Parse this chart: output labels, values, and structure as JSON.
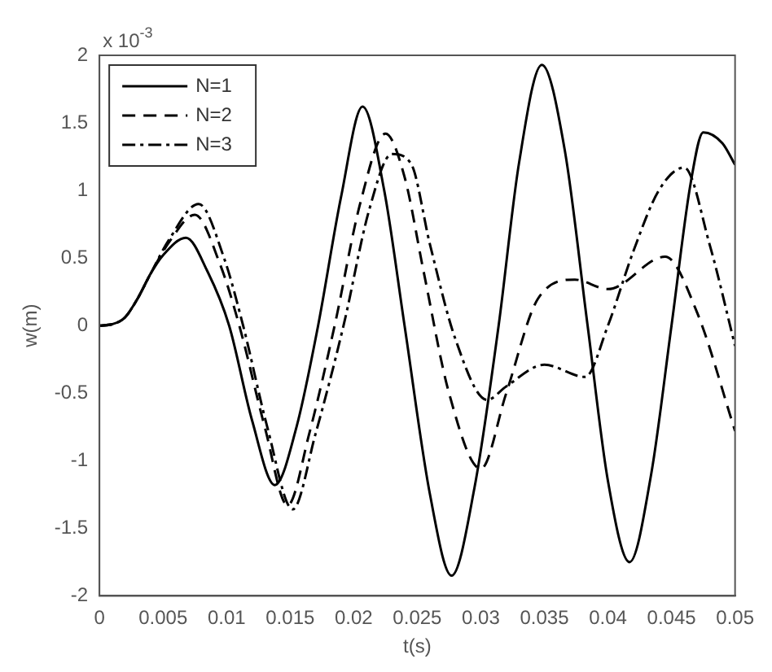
{
  "chart_data": {
    "type": "line",
    "xlabel": "t(s)",
    "ylabel": "w(m)",
    "annotations": [
      "x 10$^{-3}$"
    ],
    "xlim": [
      0,
      0.05
    ],
    "xticks": [
      0,
      0.005,
      0.01,
      0.015,
      0.02,
      0.025,
      0.03,
      0.035,
      0.04,
      0.045,
      0.05
    ],
    "ylim": [
      -2,
      2
    ],
    "yticks": [
      -2,
      -1.5,
      -1,
      -0.5,
      0,
      0.5,
      1,
      1.5,
      2
    ],
    "grid": false,
    "legend": "top left",
    "marker": "none",
    "series": [
      {
        "name": "N=1",
        "color": "#000000",
        "line_style": "solid",
        "x": [
          0,
          0.001,
          0.002,
          0.003,
          0.004,
          0.005,
          0.0068,
          0.0085,
          0.0102,
          0.012,
          0.0138,
          0.0155,
          0.0172,
          0.019,
          0.0207,
          0.0224,
          0.024,
          0.026,
          0.0277,
          0.0295,
          0.0314,
          0.033,
          0.0348,
          0.0366,
          0.0384,
          0.04,
          0.0417,
          0.0434,
          0.045,
          0.0465,
          0.0475,
          0.049,
          0.05
        ],
        "values": [
          0,
          0.01,
          0.06,
          0.2,
          0.38,
          0.52,
          0.65,
          0.4,
          0,
          -0.7,
          -1.18,
          -0.75,
          0,
          0.95,
          1.62,
          1.0,
          0,
          -1.25,
          -1.85,
          -1.2,
          0,
          1.2,
          1.93,
          1.3,
          0,
          -1.15,
          -1.75,
          -1.1,
          0,
          1.05,
          1.43,
          1.35,
          1.19
        ]
      },
      {
        "name": "N=2",
        "color": "#000000",
        "line_style": "dashed",
        "x": [
          0,
          0.001,
          0.002,
          0.003,
          0.004,
          0.0055,
          0.0075,
          0.0095,
          0.011,
          0.013,
          0.0148,
          0.0165,
          0.0185,
          0.0205,
          0.0225,
          0.024,
          0.0255,
          0.0275,
          0.03,
          0.032,
          0.0345,
          0.0374,
          0.04,
          0.0445,
          0.047,
          0.05
        ],
        "values": [
          0,
          0.01,
          0.06,
          0.2,
          0.38,
          0.62,
          0.82,
          0.45,
          0,
          -0.75,
          -1.33,
          -0.8,
          0,
          0.9,
          1.42,
          1.1,
          0.4,
          -0.5,
          -1.06,
          -0.5,
          0.2,
          0.34,
          0.27,
          0.51,
          0.1,
          -0.78
        ]
      },
      {
        "name": "N=3",
        "color": "#000000",
        "line_style": "dashdot",
        "x": [
          0,
          0.001,
          0.002,
          0.003,
          0.004,
          0.0055,
          0.0078,
          0.0098,
          0.0113,
          0.0132,
          0.0152,
          0.017,
          0.0192,
          0.0212,
          0.023,
          0.0245,
          0.026,
          0.028,
          0.0305,
          0.032,
          0.035,
          0.0382,
          0.04,
          0.042,
          0.044,
          0.046,
          0.048,
          0.05
        ],
        "values": [
          0,
          0.01,
          0.06,
          0.2,
          0.38,
          0.64,
          0.9,
          0.5,
          0,
          -0.75,
          -1.36,
          -0.8,
          0,
          0.85,
          1.27,
          1.2,
          0.6,
          -0.1,
          -0.55,
          -0.45,
          -0.29,
          -0.38,
          0,
          0.55,
          1.0,
          1.17,
          0.6,
          -0.15
        ]
      }
    ]
  }
}
